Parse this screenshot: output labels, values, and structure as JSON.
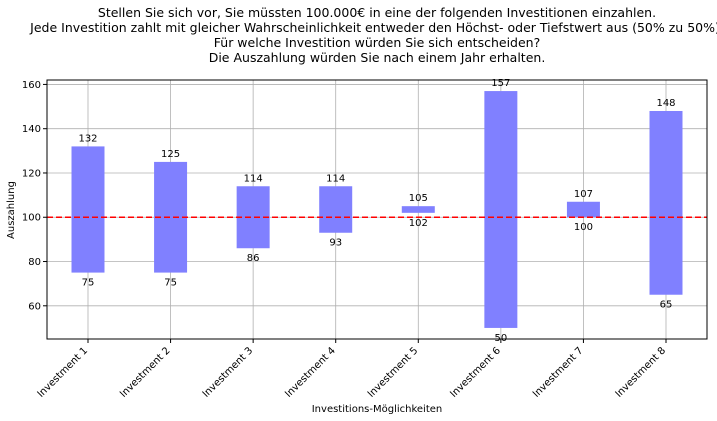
{
  "chart_data": {
    "type": "bar",
    "title_lines": [
      "Stellen Sie sich vor, Sie müssten 100.000€ in eine der folgenden Investitionen einzahlen.",
      "Jede Investition zahlt mit gleicher Wahrscheinlichkeit entweder den Höchst- oder Tiefstwert aus (50% zu 50%).",
      "Für welche Investition würden Sie sich entscheiden?",
      "Die Auszahlung würden Sie nach einem Jahr erhalten."
    ],
    "xlabel": "Investitions-Möglichkeiten",
    "ylabel": "Auszahlung",
    "categories": [
      "Investment 1",
      "Investment 2",
      "Investment 3",
      "Investment 4",
      "Investment 5",
      "Investment 6",
      "Investment 7",
      "Investment 8"
    ],
    "high": [
      132,
      125,
      114,
      114,
      105,
      157,
      107,
      148
    ],
    "low": [
      75,
      75,
      86,
      93,
      102,
      50,
      100,
      65
    ],
    "high_labels": [
      "132",
      "125",
      "114",
      "114",
      "105",
      "157",
      "107",
      "148"
    ],
    "low_labels": [
      "75",
      "75",
      "86",
      "93",
      "102",
      "50",
      "100",
      "65"
    ],
    "ylim": [
      45,
      162
    ],
    "yticks": [
      60,
      80,
      100,
      120,
      140,
      160
    ],
    "ytick_labels": [
      "60",
      "80",
      "100",
      "120",
      "140",
      "160"
    ],
    "reference_line": 100,
    "grid": true,
    "bar_color": "#8080ff",
    "reference_color": "#ff0000"
  }
}
